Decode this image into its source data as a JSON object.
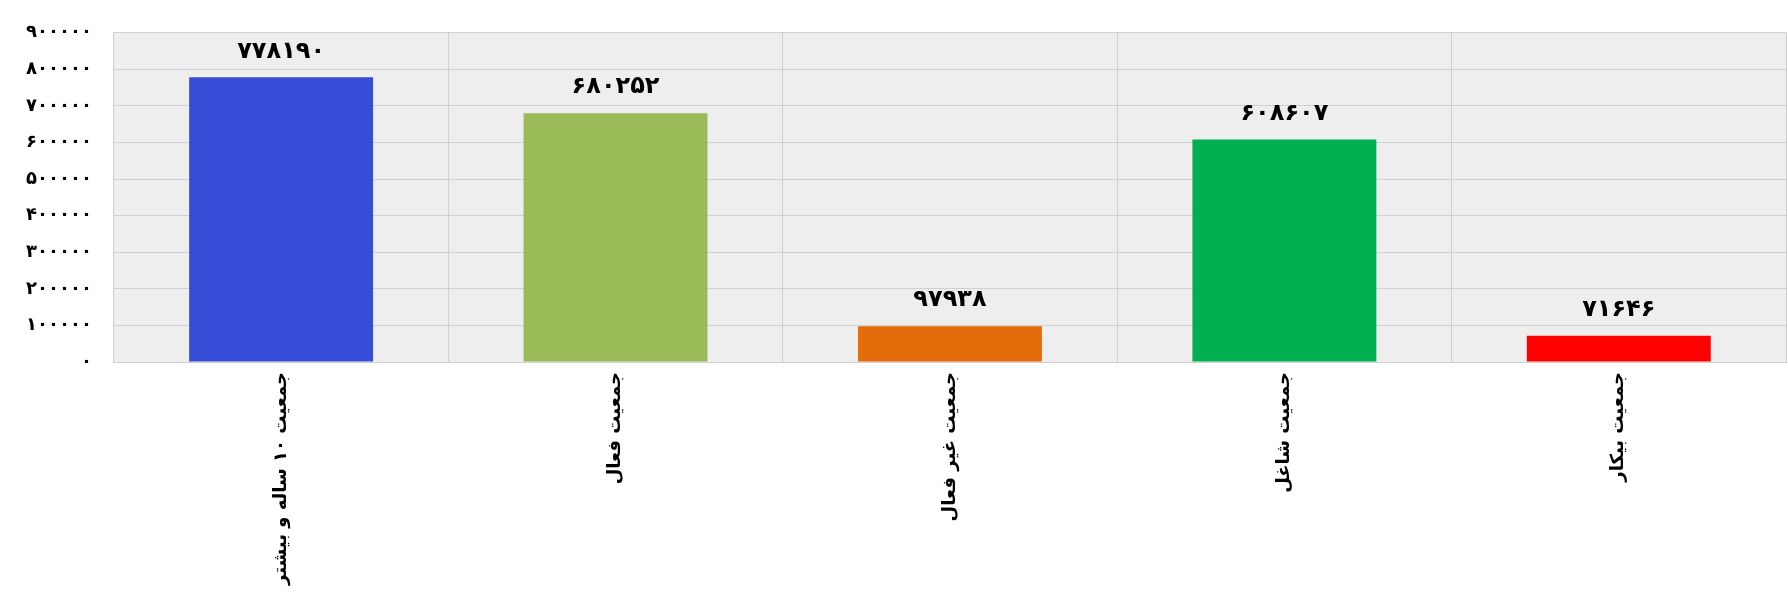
{
  "chart_data": {
    "type": "bar",
    "categories": [
      "جمعیت ۱۰ ساله و بیشتر",
      "جمعیت فعال",
      "جمعیت غیر فعال",
      "جمعیت شاغل",
      "جمعیت بیکار"
    ],
    "values": [
      778190,
      680252,
      97938,
      608607,
      71646
    ],
    "colors": [
      "#374dd8",
      "#9bbb59",
      "#e46c0a",
      "#00b050",
      "#ff0000"
    ],
    "value_labels": [
      "۷۷۸۱۹۰",
      "۶۸۰۲۵۲",
      "۹۷۹۳۸",
      "۶۰۸۶۰۷",
      "۷۱۶۴۶"
    ],
    "ylim": [
      0,
      900000
    ],
    "yticks": [
      {
        "value": 0,
        "label": "۰"
      },
      {
        "value": 100000,
        "label": "۱۰۰۰۰۰"
      },
      {
        "value": 200000,
        "label": "۲۰۰۰۰۰"
      },
      {
        "value": 300000,
        "label": "۳۰۰۰۰۰"
      },
      {
        "value": 400000,
        "label": "۴۰۰۰۰۰"
      },
      {
        "value": 500000,
        "label": "۵۰۰۰۰۰"
      },
      {
        "value": 600000,
        "label": "۶۰۰۰۰۰"
      },
      {
        "value": 700000,
        "label": "۷۰۰۰۰۰"
      },
      {
        "value": 800000,
        "label": "۸۰۰۰۰۰"
      },
      {
        "value": 900000,
        "label": "۹۰۰۰۰۰"
      }
    ],
    "grid": true
  }
}
